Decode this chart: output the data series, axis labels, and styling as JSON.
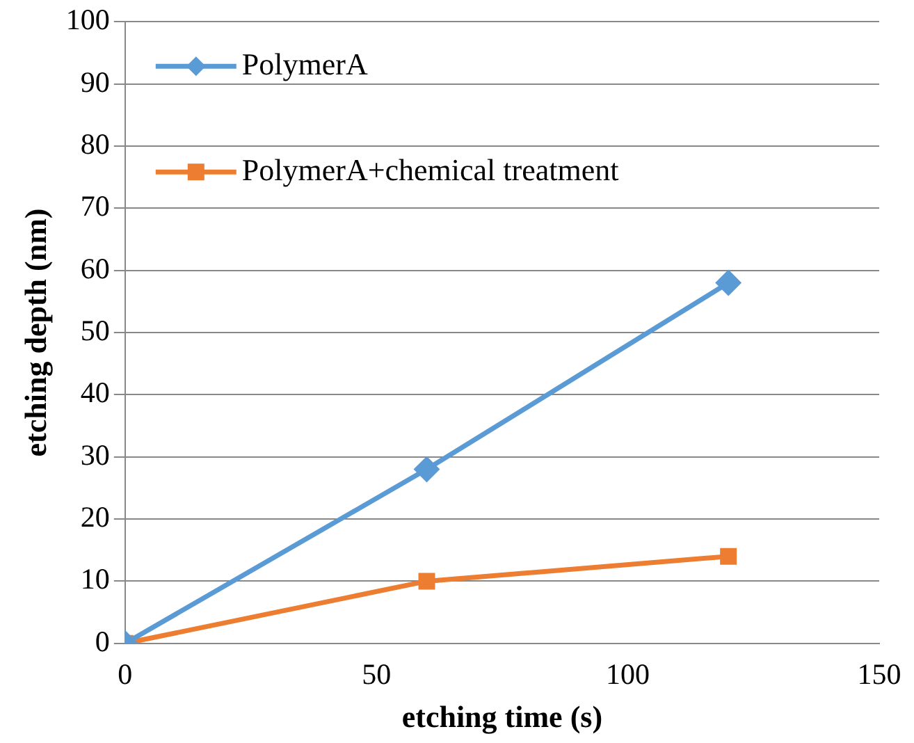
{
  "chart_data": {
    "type": "line",
    "xlabel": "etching time (s)",
    "ylabel": "etching depth (nm)",
    "series": [
      {
        "name": "PolymerA",
        "color": "#5b9bd5",
        "x": [
          0,
          60,
          120
        ],
        "values": [
          0,
          28,
          58
        ],
        "marker": "diamond"
      },
      {
        "name": "PolymerA+chemical treatment",
        "color": "#ed7d31",
        "x": [
          0,
          60,
          120
        ],
        "values": [
          0,
          10,
          14
        ],
        "marker": "square"
      }
    ],
    "xlim": [
      0,
      150
    ],
    "xticks": [
      0,
      50,
      100,
      150
    ],
    "ylim": [
      0,
      100
    ],
    "yticks": [
      0,
      10,
      20,
      30,
      40,
      50,
      60,
      70,
      80,
      90,
      100
    ],
    "grid": "y",
    "legend": "top left",
    "line_style": "solid"
  }
}
